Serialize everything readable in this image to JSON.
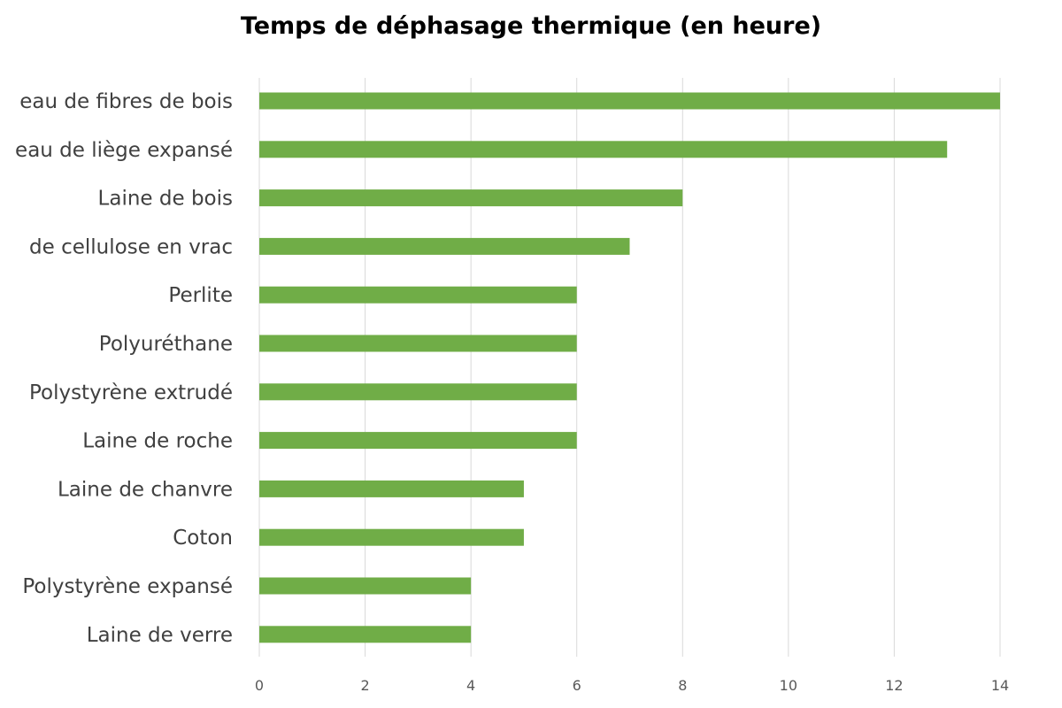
{
  "chart_data": {
    "type": "bar",
    "orientation": "horizontal",
    "title": "Temps de déphasage thermique (en heure)",
    "xlabel": "",
    "ylabel": "",
    "categories": [
      "eau de fibres de bois",
      "eau de liège expansé",
      "Laine de bois",
      "de cellulose en vrac",
      "Perlite",
      "Polyuréthane",
      "Polystyrène extrudé",
      "Laine de roche",
      "Laine de chanvre",
      "Coton",
      "Polystyrène expansé",
      "Laine de verre"
    ],
    "values": [
      14,
      13,
      8,
      7,
      6,
      6,
      6,
      6,
      5,
      5,
      4,
      4
    ],
    "xlim": [
      0,
      14
    ],
    "x_ticks": [
      "0",
      "2",
      "4",
      "6",
      "8",
      "10",
      "12",
      "14"
    ],
    "grid": true,
    "legend": "none",
    "bar_color": "#70ad47"
  }
}
